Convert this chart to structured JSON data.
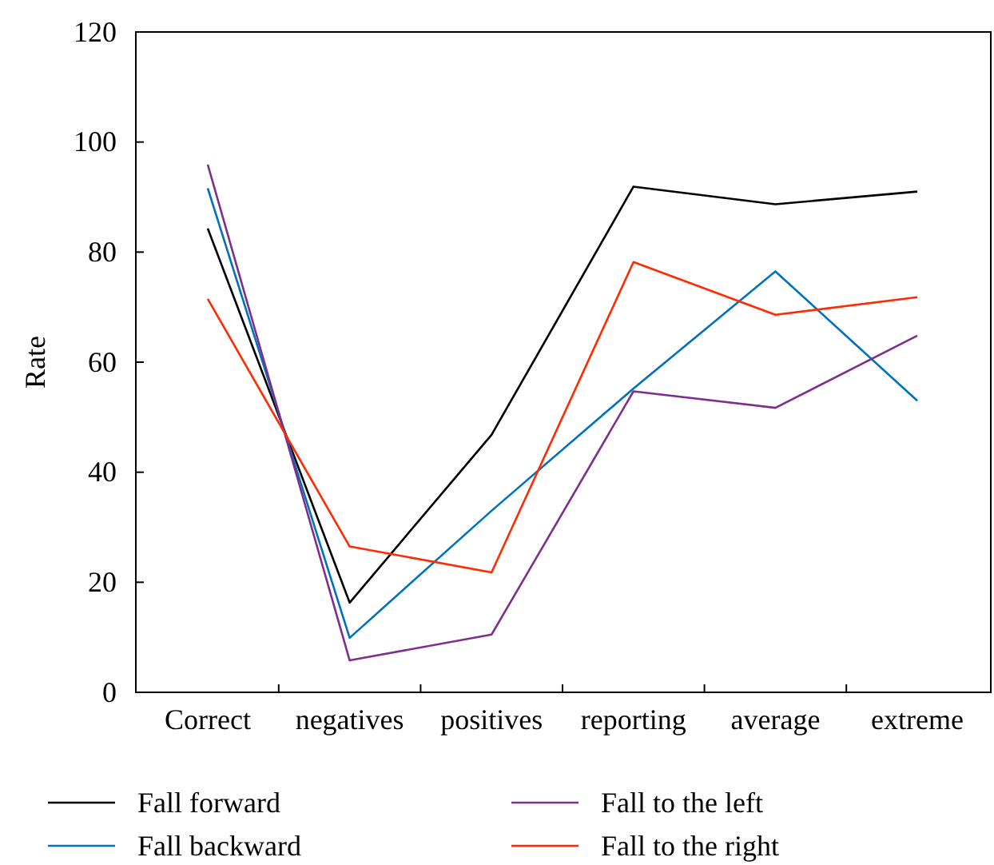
{
  "chart_data": {
    "type": "line",
    "ylabel": "Rate",
    "categories": [
      "Correct",
      "negatives",
      "positives",
      "reporting",
      "average",
      "extreme"
    ],
    "ylim": [
      0,
      120
    ],
    "yticks": [
      0,
      20,
      40,
      60,
      80,
      100,
      120
    ],
    "grid": false,
    "legend": "bottom",
    "marker": "none",
    "line_style": "solid",
    "series": [
      {
        "name": "Fall forward",
        "color": "#000000",
        "values": [
          84.3,
          16.3,
          46.8,
          91.9,
          88.7,
          91.0
        ]
      },
      {
        "name": "Fall backward",
        "color": "#0072bd",
        "values": [
          91.6,
          9.9,
          33,
          55.2,
          76.5,
          53
        ]
      },
      {
        "name": "Fall to the left",
        "color": "#7e2f8e",
        "values": [
          95.9,
          5.8,
          10.5,
          54.7,
          51.7,
          64.8
        ]
      },
      {
        "name": "Fall to the right",
        "color": "#ff2a00",
        "values": [
          71.5,
          26.5,
          21.8,
          78.2,
          68.6,
          71.8
        ]
      }
    ]
  }
}
